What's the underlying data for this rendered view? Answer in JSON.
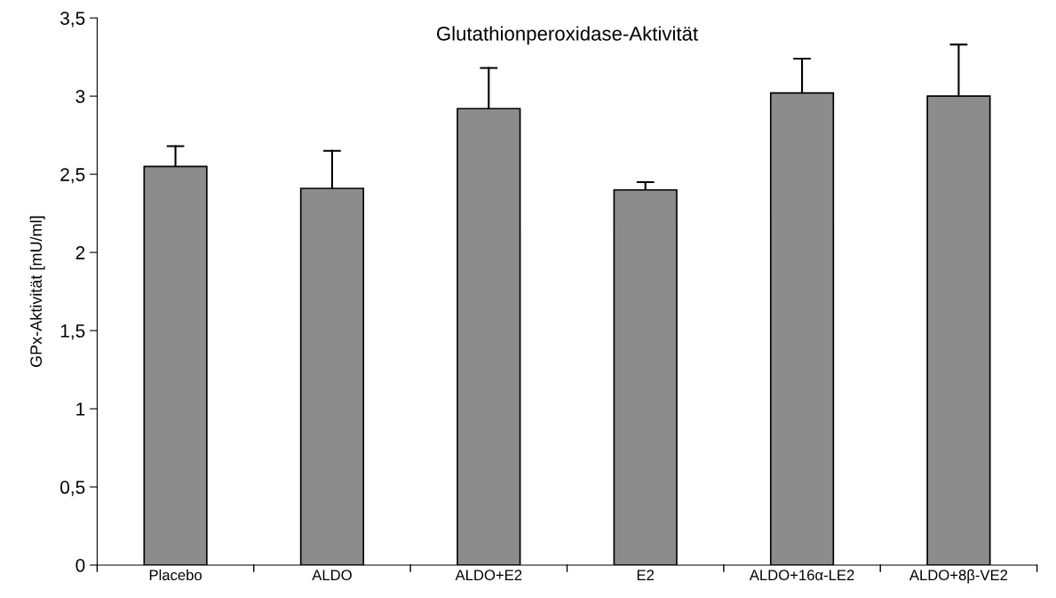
{
  "chart_data": {
    "type": "bar",
    "title": "Glutathionperoxidase-Aktivität",
    "ylabel": "GPx-Aktivität [mU/ml]",
    "categories": [
      "Placebo",
      "ALDO",
      "ALDO+E2",
      "E2",
      "ALDO+16α-LE2",
      "ALDO+8β-VE2"
    ],
    "values": [
      2.55,
      2.41,
      2.92,
      2.4,
      3.02,
      3.0
    ],
    "errors": [
      [
        2.55,
        2.68
      ],
      [
        2.41,
        2.65
      ],
      [
        2.92,
        3.18
      ],
      [
        2.4,
        2.45
      ],
      [
        3.02,
        3.24
      ],
      [
        3.0,
        3.33
      ]
    ],
    "color": "#8c8c8c",
    "ylim": [
      0,
      3.5
    ],
    "yticks": [
      0,
      {
        "value": 0.5,
        "label": "0,5"
      },
      1,
      {
        "value": 1.5,
        "label": "1,5"
      },
      2,
      {
        "value": 2.5,
        "label": "2,5"
      },
      3,
      {
        "value": 3.5,
        "label": "3,5"
      }
    ],
    "grid": false,
    "legend": false
  }
}
